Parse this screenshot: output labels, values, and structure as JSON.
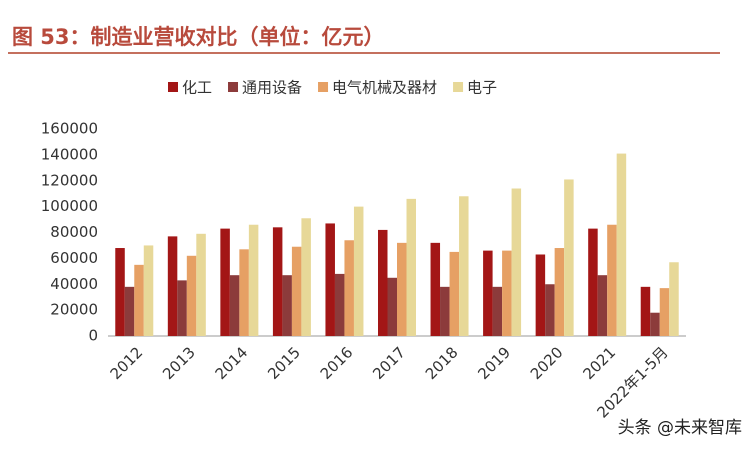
{
  "chart_data": {
    "type": "bar",
    "title": "图 53：制造业营收对比（单位：亿元）",
    "categories": [
      "2012",
      "2013",
      "2014",
      "2015",
      "2016",
      "2017",
      "2018",
      "2019",
      "2020",
      "2021",
      "2022年1-5月"
    ],
    "series": [
      {
        "name": "化工",
        "color": "#a31616",
        "values": [
          68000,
          77000,
          83000,
          84000,
          87000,
          82000,
          72000,
          66000,
          63000,
          83000,
          38000
        ]
      },
      {
        "name": "通用设备",
        "color": "#8c3b3b",
        "values": [
          38000,
          43000,
          47000,
          47000,
          48000,
          45000,
          38000,
          38000,
          40000,
          47000,
          18000
        ]
      },
      {
        "name": "电气机械及器材",
        "color": "#e6a064",
        "values": [
          55000,
          62000,
          67000,
          69000,
          74000,
          72000,
          65000,
          66000,
          68000,
          86000,
          37000
        ]
      },
      {
        "name": "电子",
        "color": "#e7d898",
        "values": [
          70000,
          79000,
          86000,
          91000,
          100000,
          106000,
          108000,
          114000,
          121000,
          141000,
          57000
        ]
      }
    ],
    "ylim": [
      0,
      160000
    ],
    "yticks": [
      0,
      20000,
      40000,
      60000,
      80000,
      100000,
      120000,
      140000,
      160000
    ],
    "grid": false,
    "legend": "top",
    "watermark": "头条 @未来智库"
  }
}
